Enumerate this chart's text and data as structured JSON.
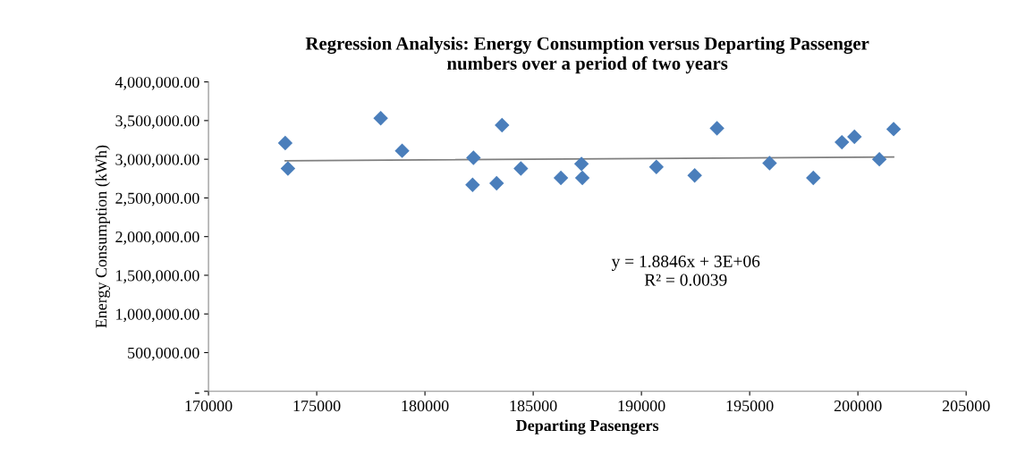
{
  "chart_data": {
    "type": "scatter",
    "title": "Regression Analysis: Energy Consumption versus Departing Passenger\nnumbers over a period of two years",
    "xlabel": "Departing Pasengers",
    "ylabel": "Energy Consumption (kWh)",
    "x": [
      173545,
      173670,
      177955,
      178945,
      182200,
      182240,
      183310,
      183560,
      184430,
      186280,
      187230,
      187270,
      190690,
      192460,
      193490,
      195920,
      197940,
      199260,
      199840,
      200990,
      201650
    ],
    "series": [
      {
        "color": "#4a7ebb",
        "marker": "diamond",
        "values": [
          3210000,
          2880000,
          3530000,
          3110000,
          2670000,
          3020000,
          2690000,
          3440000,
          2880000,
          2760000,
          2940000,
          2760000,
          2900000,
          2790000,
          3400000,
          2950000,
          2760000,
          3220000,
          3290000,
          3000000,
          3390000
        ]
      },
      {
        "type": "line",
        "color": "#7f7f7f",
        "marker": "none",
        "x": [
          173545,
          201650
        ],
        "values": [
          2980000,
          3030000
        ]
      }
    ],
    "xlim": [
      170000,
      205000
    ],
    "xticks": [
      170000,
      175000,
      180000,
      185000,
      190000,
      195000,
      200000,
      205000
    ],
    "ylim": [
      0,
      4000000
    ],
    "yticks": [
      {
        "value": 0,
        "label": "-"
      },
      {
        "value": 500000,
        "label": "500,000.00"
      },
      {
        "value": 1000000,
        "label": "1,000,000.00"
      },
      {
        "value": 1500000,
        "label": "1,500,000.00"
      },
      {
        "value": 2000000,
        "label": "2,000,000.00"
      },
      {
        "value": 2500000,
        "label": "2,500,000.00"
      },
      {
        "value": 3000000,
        "label": "3,000,000.00"
      },
      {
        "value": 3500000,
        "label": "3,500,000.00"
      },
      {
        "value": 4000000,
        "label": "4,000,000.00"
      }
    ],
    "annotations": [
      "y = 1.8846x + 3E+06",
      "R² = 0.0039"
    ],
    "grid": false,
    "legend": false
  }
}
